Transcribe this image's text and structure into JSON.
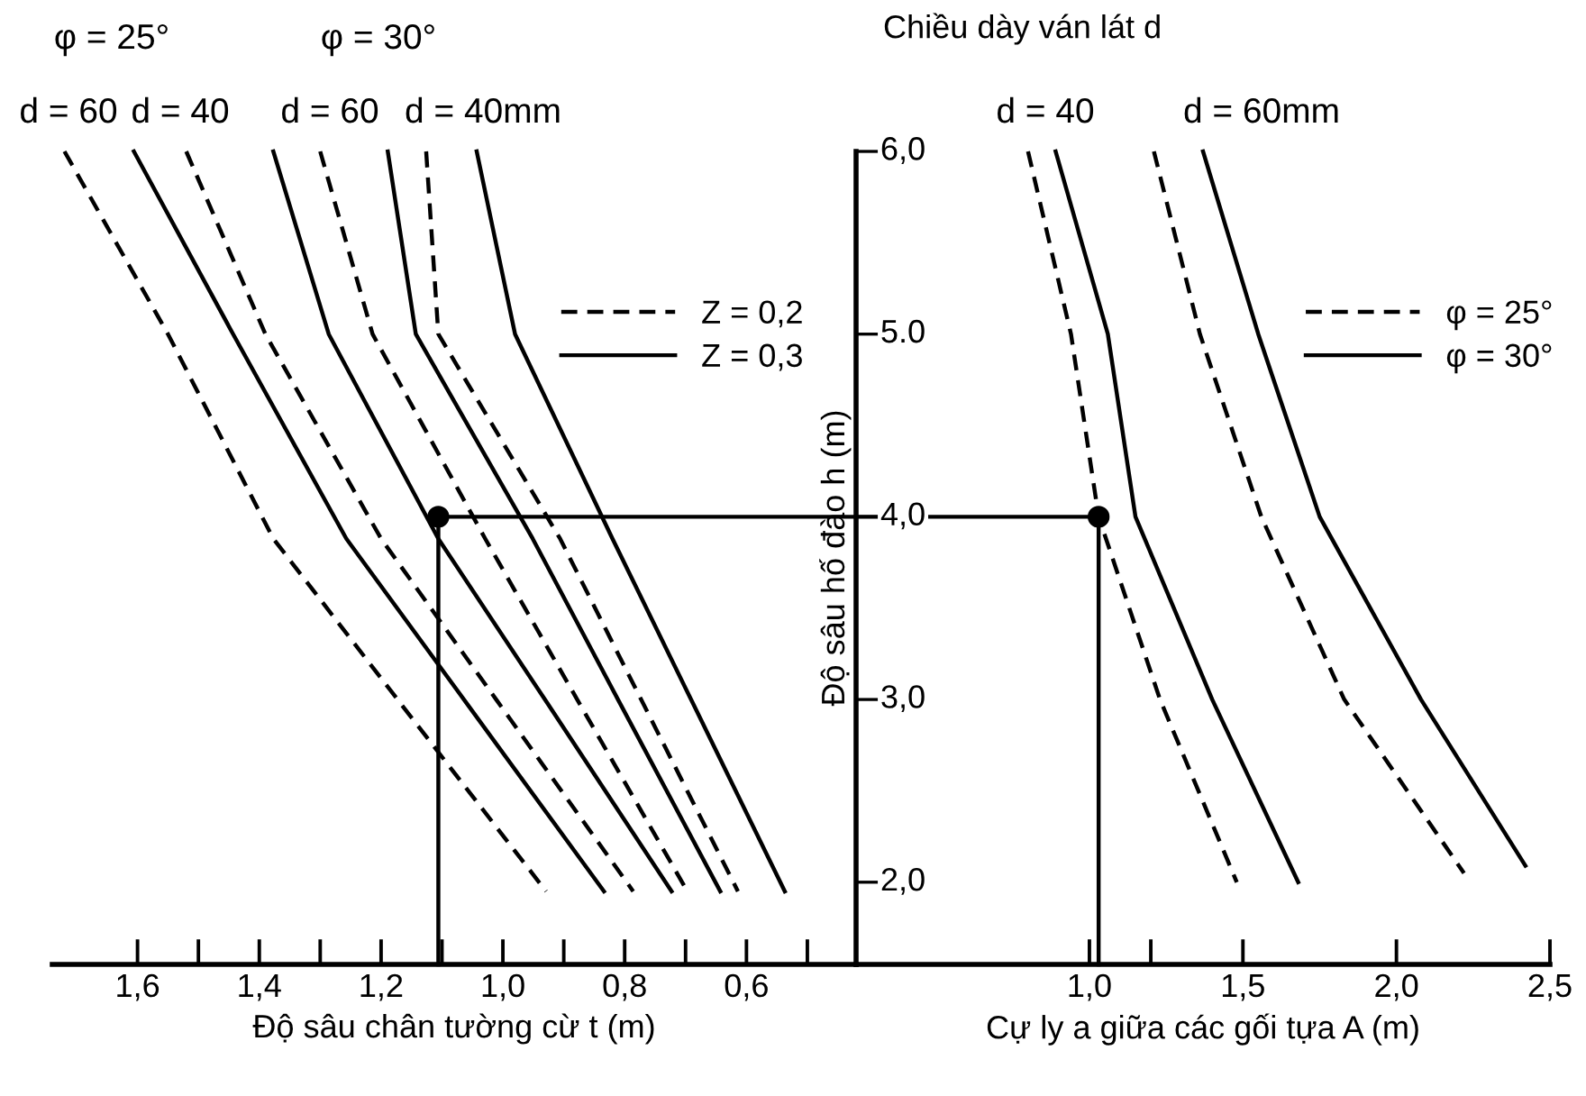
{
  "chart_data": [
    {
      "type": "line",
      "xlabel": "Độ sâu chân tường cừ t (m)",
      "xlim": [
        1.74,
        0.42
      ],
      "ylim": [
        1.55,
        6.0
      ],
      "xticks": [
        {
          "value": 1.6,
          "label": "1,6"
        },
        {
          "value": 1.5,
          "label": null
        },
        {
          "value": 1.4,
          "label": "1,4"
        },
        {
          "value": 1.3,
          "label": null
        },
        {
          "value": 1.2,
          "label": "1,2"
        },
        {
          "value": 1.1,
          "label": null
        },
        {
          "value": 1.0,
          "label": "1,0"
        },
        {
          "value": 0.9,
          "label": null
        },
        {
          "value": 0.8,
          "label": "0,8"
        },
        {
          "value": 0.7,
          "label": null
        },
        {
          "value": 0.6,
          "label": "0,6"
        },
        {
          "value": 0.5,
          "label": null
        }
      ],
      "tick_labels": "x",
      "grid": false,
      "legend": "upper right",
      "annotations": [
        "φ = 25°",
        "φ = 30°",
        "d = 60",
        "d = 40",
        "d = 60",
        "d = 40mm"
      ],
      "series": [
        {
          "name": "Z = 0,2",
          "color": "#000000",
          "line_style": "dashed",
          "x": [
            1.72,
            1.55,
            1.377,
            1.173,
            0.929
          ],
          "values": [
            6.0,
            5.0,
            3.88,
            3.0,
            1.95
          ]
        },
        {
          "name": "Z = 0,3",
          "color": "#000000",
          "line_style": "solid",
          "x": [
            1.606,
            1.443,
            1.257,
            1.064,
            0.834
          ],
          "values": [
            6.0,
            5.0,
            3.88,
            3.0,
            1.95
          ]
        },
        {
          "color": "#000000",
          "line_style": "dashed",
          "x": [
            1.52,
            1.39,
            1.2,
            1.011,
            0.786
          ],
          "values": [
            6.0,
            5.0,
            3.88,
            3.0,
            1.95
          ]
        },
        {
          "color": "#000000",
          "line_style": "solid",
          "x": [
            1.377,
            1.286,
            1.106,
            0.931,
            0.723
          ],
          "values": [
            6.0,
            5.0,
            3.88,
            3.0,
            1.95
          ]
        },
        {
          "color": "#000000",
          "line_style": "dashed",
          "x": [
            1.3,
            1.214,
            1.029,
            0.878,
            0.697
          ],
          "values": [
            6.0,
            5.0,
            3.88,
            3.0,
            1.95
          ]
        },
        {
          "color": "#000000",
          "line_style": "solid",
          "x": [
            1.189,
            1.143,
            0.951,
            0.811,
            0.643
          ],
          "values": [
            6.0,
            5.0,
            3.88,
            3.0,
            1.95
          ]
        },
        {
          "color": "#000000",
          "line_style": "dashed",
          "x": [
            1.126,
            1.106,
            0.906,
            0.773,
            0.614
          ],
          "values": [
            6.0,
            5.0,
            3.88,
            3.0,
            1.95
          ]
        },
        {
          "color": "#000000",
          "line_style": "solid",
          "x": [
            1.043,
            0.98,
            0.82,
            0.691,
            0.537
          ],
          "values": [
            6.0,
            5.0,
            3.88,
            3.0,
            1.95
          ]
        },
        {
          "color": "#000000",
          "line_style": "solid",
          "x": [
            0.42,
            1.106,
            1.106
          ],
          "values": [
            4.0,
            4.0,
            1.55
          ]
        },
        {
          "type": "scatter",
          "color": "#000000",
          "marker": "circle",
          "x": [
            1.106
          ],
          "values": [
            4.0
          ]
        }
      ]
    },
    {
      "type": "line",
      "title": "Chiều dày ván lát d",
      "ylabel": "Độ sâu hố đào h (m)",
      "xlabel": "Cự ly a giữa các gối tựa A (m)",
      "xlim": [
        0.24,
        2.5
      ],
      "ylim": [
        1.55,
        6.0
      ],
      "xticks": [
        {
          "value": 1.0,
          "label": "1,0"
        },
        {
          "value": 1.2,
          "label": null
        },
        {
          "value": 1.5,
          "label": "1,5"
        },
        {
          "value": 2.0,
          "label": "2,0"
        },
        {
          "value": 2.5,
          "label": "2,5"
        }
      ],
      "yticks": [
        {
          "value": 2.0,
          "label": "2,0"
        },
        {
          "value": 3.0,
          "label": "3,0"
        },
        {
          "value": 4.0,
          "label": "4,0"
        },
        {
          "value": 5.0,
          "label": "5.0"
        },
        {
          "value": 6.0,
          "label": "6,0"
        }
      ],
      "grid": false,
      "legend": "upper right",
      "annotations": [
        "d = 40",
        "d = 60mm"
      ],
      "series": [
        {
          "name": "φ = 25°",
          "color": "#000000",
          "line_style": "dashed",
          "x": [
            0.8,
            0.94,
            1.03,
            1.23,
            1.48
          ],
          "values": [
            6.0,
            5.0,
            4.0,
            3.0,
            2.0
          ]
        },
        {
          "name": "φ = 30°",
          "color": "#000000",
          "line_style": "solid",
          "x": [
            0.89,
            1.06,
            1.15,
            1.4,
            1.68
          ],
          "values": [
            6.0,
            5.0,
            4.0,
            3.0,
            2.0
          ]
        },
        {
          "color": "#000000",
          "line_style": "dashed",
          "x": [
            1.21,
            1.36,
            1.56,
            1.83,
            2.22
          ],
          "values": [
            6.0,
            5.0,
            4.0,
            3.0,
            2.05
          ]
        },
        {
          "color": "#000000",
          "line_style": "solid",
          "x": [
            1.37,
            1.55,
            1.75,
            2.08,
            2.42
          ],
          "values": [
            6.0,
            5.0,
            4.0,
            3.0,
            2.09
          ]
        },
        {
          "color": "#000000",
          "line_style": "solid",
          "x": [
            0.24,
            1.03,
            1.03
          ],
          "values": [
            4.0,
            4.0,
            1.55
          ]
        },
        {
          "type": "scatter",
          "color": "#000000",
          "marker": "circle",
          "x": [
            1.03
          ],
          "values": [
            4.0
          ]
        }
      ]
    }
  ]
}
